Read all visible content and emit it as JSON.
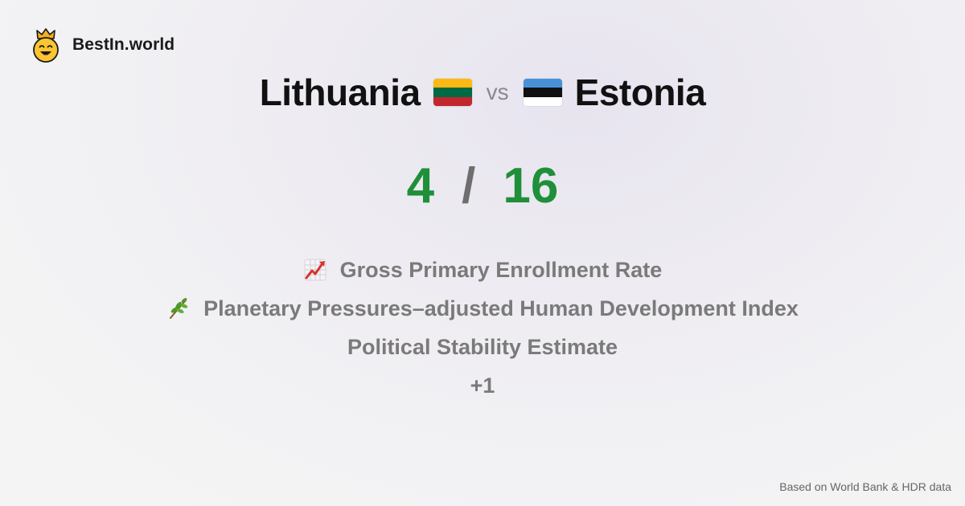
{
  "brand": {
    "name": "BestIn.world",
    "logo_icon": "crowned-smiley-icon"
  },
  "comparison": {
    "left": {
      "name": "Lithuania",
      "flag_icon": "lithuania-flag-icon",
      "flag_colors": [
        "#FDB913",
        "#006A44",
        "#C1272D"
      ]
    },
    "vs_label": "vs",
    "right": {
      "name": "Estonia",
      "flag_icon": "estonia-flag-icon",
      "flag_colors": [
        "#4891D9",
        "#111111",
        "#FFFFFF"
      ]
    }
  },
  "score": {
    "left": "4",
    "separator": "/",
    "right": "16",
    "score_color": "#1f8f3a"
  },
  "indicators": [
    {
      "icon": "chart-increasing-icon",
      "label": "Gross Primary Enrollment Rate"
    },
    {
      "icon": "herb-icon",
      "label": "Planetary Pressures–adjusted Human Development Index"
    },
    {
      "icon": "",
      "label": "Political Stability Estimate"
    }
  ],
  "more_label": "+1",
  "footer": {
    "source": "Based on World Bank & HDR data"
  }
}
